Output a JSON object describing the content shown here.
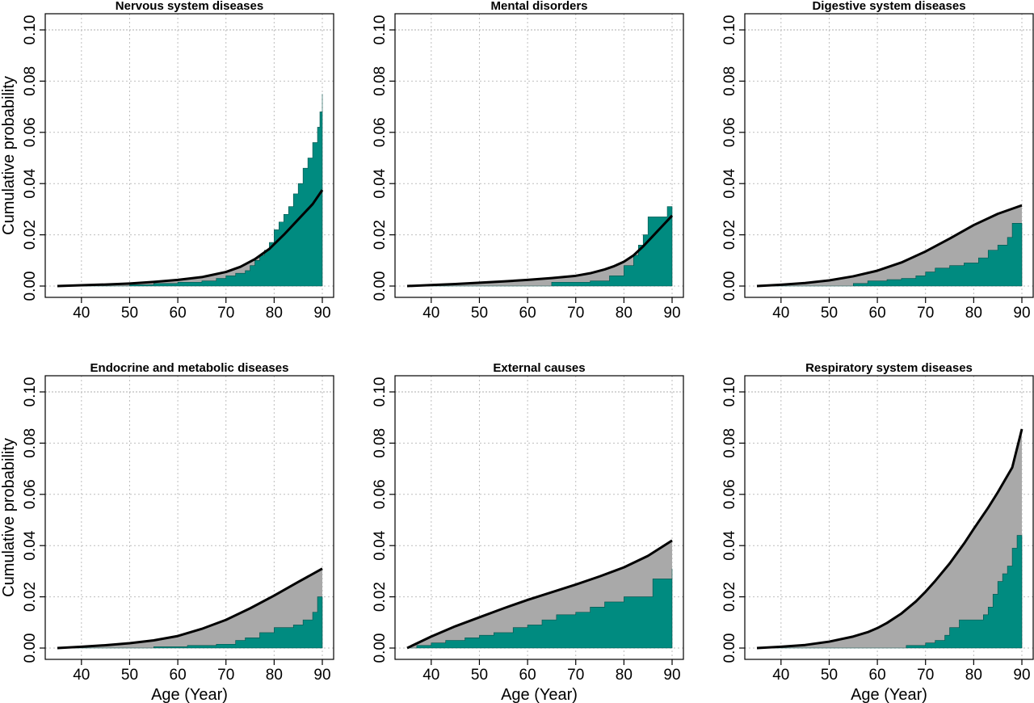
{
  "colors": {
    "observed_fill": "#008B80",
    "expected_fill": "#A9A9A9",
    "curve": "#000000",
    "grid": "#BEBEBE",
    "reference_line": "#BEBEBE"
  },
  "chart_data": [
    {
      "type": "area",
      "title": "Nervous system diseases",
      "xlabel": "",
      "ylabel": "Cumulative probability",
      "xlim": [
        35,
        90
      ],
      "ylim": [
        0,
        0.1
      ],
      "x_ticks": [
        "40",
        "50",
        "60",
        "70",
        "80",
        "90"
      ],
      "y_ticks": [
        "0.00",
        "0.02",
        "0.04",
        "0.06",
        "0.08",
        "0.10"
      ],
      "grid": true,
      "reference_line_y": 0.1,
      "curve": {
        "x": [
          35,
          40,
          45,
          50,
          55,
          60,
          65,
          70,
          73,
          76,
          79,
          82,
          85,
          88,
          90
        ],
        "y": [
          0,
          0.0003,
          0.0006,
          0.001,
          0.0016,
          0.0024,
          0.0035,
          0.0055,
          0.0075,
          0.0105,
          0.0145,
          0.02,
          0.026,
          0.032,
          0.0375
        ]
      },
      "observed_steps": {
        "x": [
          35,
          50,
          55,
          60,
          65,
          68,
          70,
          72,
          74,
          75,
          76,
          77,
          78,
          79,
          80,
          81,
          82,
          83,
          84,
          85,
          86,
          87,
          88,
          89,
          89.5,
          90
        ],
        "y": [
          0,
          0.0005,
          0.001,
          0.0015,
          0.002,
          0.003,
          0.004,
          0.005,
          0.006,
          0.008,
          0.01,
          0.012,
          0.014,
          0.017,
          0.022,
          0.025,
          0.028,
          0.031,
          0.036,
          0.04,
          0.046,
          0.05,
          0.056,
          0.062,
          0.068,
          0.075
        ]
      }
    },
    {
      "type": "area",
      "title": "Mental disorders",
      "xlabel": "",
      "ylabel": "",
      "xlim": [
        35,
        90
      ],
      "ylim": [
        0,
        0.1
      ],
      "x_ticks": [
        "40",
        "50",
        "60",
        "70",
        "80",
        "90"
      ],
      "y_ticks": [
        "0.00",
        "0.02",
        "0.04",
        "0.06",
        "0.08",
        "0.10"
      ],
      "grid": true,
      "reference_line_y": 0.1,
      "curve": {
        "x": [
          35,
          40,
          45,
          50,
          55,
          60,
          65,
          70,
          73,
          76,
          78,
          80,
          82,
          84,
          86,
          88,
          90
        ],
        "y": [
          0,
          0.0004,
          0.0008,
          0.0013,
          0.0018,
          0.0024,
          0.0031,
          0.004,
          0.005,
          0.0065,
          0.0078,
          0.0095,
          0.012,
          0.0155,
          0.0195,
          0.0235,
          0.0275
        ]
      },
      "observed_steps": {
        "x": [
          35,
          65,
          73,
          77,
          80,
          82,
          83,
          84,
          85,
          86,
          89,
          90
        ],
        "y": [
          0,
          0.0015,
          0.002,
          0.004,
          0.008,
          0.012,
          0.016,
          0.02,
          0.027,
          0.027,
          0.031,
          0.031
        ]
      }
    },
    {
      "type": "area",
      "title": "Digestive system diseases",
      "xlabel": "",
      "ylabel": "",
      "xlim": [
        35,
        90
      ],
      "ylim": [
        0,
        0.1
      ],
      "x_ticks": [
        "40",
        "50",
        "60",
        "70",
        "80",
        "90"
      ],
      "y_ticks": [
        "0.00",
        "0.02",
        "0.04",
        "0.06",
        "0.08",
        "0.10"
      ],
      "grid": true,
      "reference_line_y": 0.1,
      "curve": {
        "x": [
          35,
          40,
          45,
          50,
          55,
          60,
          65,
          70,
          75,
          80,
          85,
          90
        ],
        "y": [
          0,
          0.0005,
          0.0012,
          0.0022,
          0.0038,
          0.006,
          0.0092,
          0.0135,
          0.0185,
          0.0238,
          0.0282,
          0.0315
        ]
      },
      "observed_steps": {
        "x": [
          35,
          55,
          58,
          62,
          65,
          68,
          70,
          72,
          75,
          78,
          81,
          83,
          85,
          87,
          88,
          90
        ],
        "y": [
          0,
          0.001,
          0.002,
          0.0025,
          0.003,
          0.004,
          0.0055,
          0.007,
          0.008,
          0.009,
          0.011,
          0.014,
          0.016,
          0.019,
          0.0245,
          0.0245
        ]
      }
    },
    {
      "type": "area",
      "title": "Endocrine and metabolic diseases",
      "xlabel": "Age (Year)",
      "ylabel": "Cumulative probability",
      "xlim": [
        35,
        90
      ],
      "ylim": [
        0,
        0.1
      ],
      "x_ticks": [
        "40",
        "50",
        "60",
        "70",
        "80",
        "90"
      ],
      "y_ticks": [
        "0.00",
        "0.02",
        "0.04",
        "0.06",
        "0.08",
        "0.10"
      ],
      "grid": true,
      "reference_line_y": 0.1,
      "curve": {
        "x": [
          35,
          40,
          45,
          50,
          55,
          60,
          65,
          70,
          75,
          80,
          85,
          90
        ],
        "y": [
          0,
          0.0005,
          0.0011,
          0.0019,
          0.003,
          0.0047,
          0.0075,
          0.011,
          0.0155,
          0.0205,
          0.0258,
          0.031
        ]
      },
      "observed_steps": {
        "x": [
          35,
          55,
          62,
          68,
          72,
          74,
          77,
          80,
          84,
          86,
          88,
          89,
          90
        ],
        "y": [
          0,
          0.0005,
          0.001,
          0.0015,
          0.003,
          0.004,
          0.006,
          0.008,
          0.009,
          0.011,
          0.014,
          0.02,
          0.02
        ]
      }
    },
    {
      "type": "area",
      "title": "External causes",
      "xlabel": "Age (Year)",
      "ylabel": "",
      "xlim": [
        35,
        90
      ],
      "ylim": [
        0,
        0.1
      ],
      "x_ticks": [
        "40",
        "50",
        "60",
        "70",
        "80",
        "90"
      ],
      "y_ticks": [
        "0.00",
        "0.02",
        "0.04",
        "0.06",
        "0.08",
        "0.10"
      ],
      "grid": true,
      "reference_line_y": 0.1,
      "curve": {
        "x": [
          35,
          40,
          45,
          50,
          55,
          60,
          65,
          70,
          75,
          80,
          85,
          90
        ],
        "y": [
          0,
          0.0045,
          0.0085,
          0.012,
          0.0155,
          0.0188,
          0.0218,
          0.0248,
          0.028,
          0.0315,
          0.036,
          0.042
        ]
      },
      "observed_steps": {
        "x": [
          35,
          37,
          40,
          43,
          47,
          50,
          53,
          57,
          60,
          63,
          66,
          70,
          73,
          76,
          80,
          83,
          86,
          89.5,
          90
        ],
        "y": [
          0,
          0.001,
          0.002,
          0.003,
          0.004,
          0.005,
          0.006,
          0.008,
          0.009,
          0.011,
          0.013,
          0.014,
          0.016,
          0.018,
          0.02,
          0.02,
          0.027,
          0.027,
          0.031
        ]
      }
    },
    {
      "type": "area",
      "title": "Respiratory system diseases",
      "xlabel": "Age (Year)",
      "ylabel": "",
      "xlim": [
        35,
        90
      ],
      "ylim": [
        0,
        0.1
      ],
      "x_ticks": [
        "40",
        "50",
        "60",
        "70",
        "80",
        "90"
      ],
      "y_ticks": [
        "0.00",
        "0.02",
        "0.04",
        "0.06",
        "0.08",
        "0.10"
      ],
      "grid": true,
      "reference_line_y": 0.1,
      "curve": {
        "x": [
          35,
          40,
          45,
          50,
          55,
          58,
          60,
          62,
          65,
          68,
          70,
          72,
          75,
          78,
          80,
          83,
          85,
          88,
          90
        ],
        "y": [
          0,
          0.0005,
          0.0012,
          0.0025,
          0.0045,
          0.0062,
          0.0078,
          0.0098,
          0.0135,
          0.0182,
          0.022,
          0.0262,
          0.033,
          0.0408,
          0.0465,
          0.0548,
          0.0608,
          0.0705,
          0.0855
        ]
      },
      "observed_steps": {
        "x": [
          35,
          66,
          70,
          72,
          74,
          75,
          77,
          80,
          82,
          83,
          84,
          85,
          86,
          87,
          88,
          89,
          90
        ],
        "y": [
          0,
          0.001,
          0.002,
          0.003,
          0.005,
          0.008,
          0.011,
          0.011,
          0.013,
          0.016,
          0.021,
          0.026,
          0.029,
          0.032,
          0.039,
          0.044,
          0.044
        ]
      }
    }
  ]
}
